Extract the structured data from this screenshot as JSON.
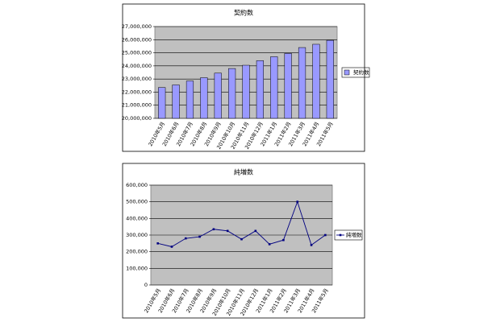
{
  "chart_data": [
    {
      "type": "bar",
      "title": "契約数",
      "categories": [
        "2010年5月",
        "2010年6月",
        "2010年7月",
        "2010年8月",
        "2010年9月",
        "2010年10月",
        "2010年11月",
        "2010年12月",
        "2011年1月",
        "2011年2月",
        "2011年3月",
        "2011年4月",
        "2011年5月"
      ],
      "series": [
        {
          "name": "契約数",
          "color": "#9999ff",
          "values": [
            22350000,
            22550000,
            22850000,
            23100000,
            23450000,
            23800000,
            24050000,
            24400000,
            24700000,
            24950000,
            25400000,
            25650000,
            25950000
          ]
        }
      ],
      "ylim": [
        20000000,
        27000000
      ],
      "yticks": [
        {
          "value": 20000000,
          "label": "20,000,000"
        },
        {
          "value": 21000000,
          "label": "21,000,000"
        },
        {
          "value": 22000000,
          "label": "22,000,000"
        },
        {
          "value": 23000000,
          "label": "23,000,000"
        },
        {
          "value": 24000000,
          "label": "24,000,000"
        },
        {
          "value": 25000000,
          "label": "25,000,000"
        },
        {
          "value": 26000000,
          "label": "26,000,000"
        },
        {
          "value": 27000000,
          "label": "27,000,000"
        }
      ],
      "grid": true,
      "legend": "right"
    },
    {
      "type": "line",
      "title": "純増数",
      "categories": [
        "2010年5月",
        "2010年6月",
        "2010年7月",
        "2010年8月",
        "2010年9月",
        "2010年10月",
        "2010年11月",
        "2010年12月",
        "2011年1月",
        "2011年2月",
        "2011年3月",
        "2011年4月",
        "2011年5月"
      ],
      "series": [
        {
          "name": "純増数",
          "color": "#000080",
          "values": [
            250000,
            230000,
            280000,
            290000,
            335000,
            325000,
            275000,
            325000,
            245000,
            270000,
            500000,
            240000,
            300000
          ]
        }
      ],
      "ylim": [
        0,
        600000
      ],
      "yticks": [
        0,
        {
          "value": 100000,
          "label": "100,000"
        },
        {
          "value": 200000,
          "label": "200,000"
        },
        {
          "value": 300000,
          "label": "300,000"
        },
        {
          "value": 400000,
          "label": "400,000"
        },
        {
          "value": 500000,
          "label": "500,000"
        },
        {
          "value": 600000,
          "label": "600,000"
        }
      ],
      "grid": true,
      "legend": "right"
    }
  ]
}
